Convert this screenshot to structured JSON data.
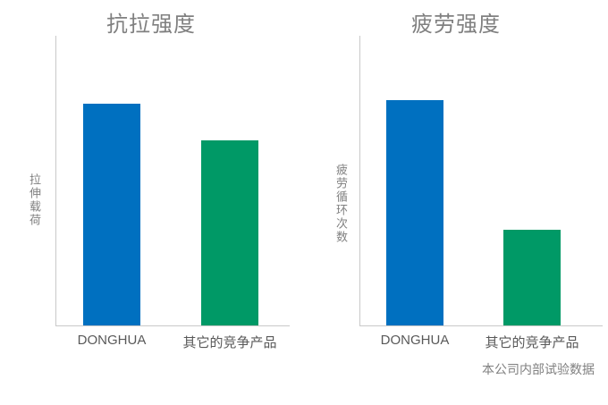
{
  "page": {
    "background": "#ffffff",
    "footnote": "本公司内部试验数据"
  },
  "colors": {
    "donghua_bar": "#0070C0",
    "competitor_bar": "#009966",
    "title_text": "#808080",
    "axis_line": "#C9C9C9",
    "category_text": "#595959",
    "ylabel_text": "#808080"
  },
  "chart_data": [
    {
      "type": "bar",
      "title": "抗拉强度",
      "ylabel": "拉伸载荷",
      "categories": [
        "DONGHUA",
        "其它的竞争产品"
      ],
      "values_relative": [
        100,
        83
      ],
      "values_pct_of_plot_height": [
        76.5,
        63.9
      ],
      "bar_colors": [
        "#0070C0",
        "#009966"
      ],
      "axis_ticks": "none (qualitative comparison, no numeric scale shown)",
      "grid": "off",
      "legend": "none"
    },
    {
      "type": "bar",
      "title": "疲劳强度",
      "ylabel": "疲劳循环次数",
      "categories": [
        "DONGHUA",
        "其它的竞争产品"
      ],
      "values_relative": [
        100,
        42
      ],
      "values_pct_of_plot_height": [
        77.8,
        33.0
      ],
      "bar_colors": [
        "#0070C0",
        "#009966"
      ],
      "axis_ticks": "none (qualitative comparison, no numeric scale shown)",
      "grid": "off",
      "legend": "none"
    }
  ]
}
